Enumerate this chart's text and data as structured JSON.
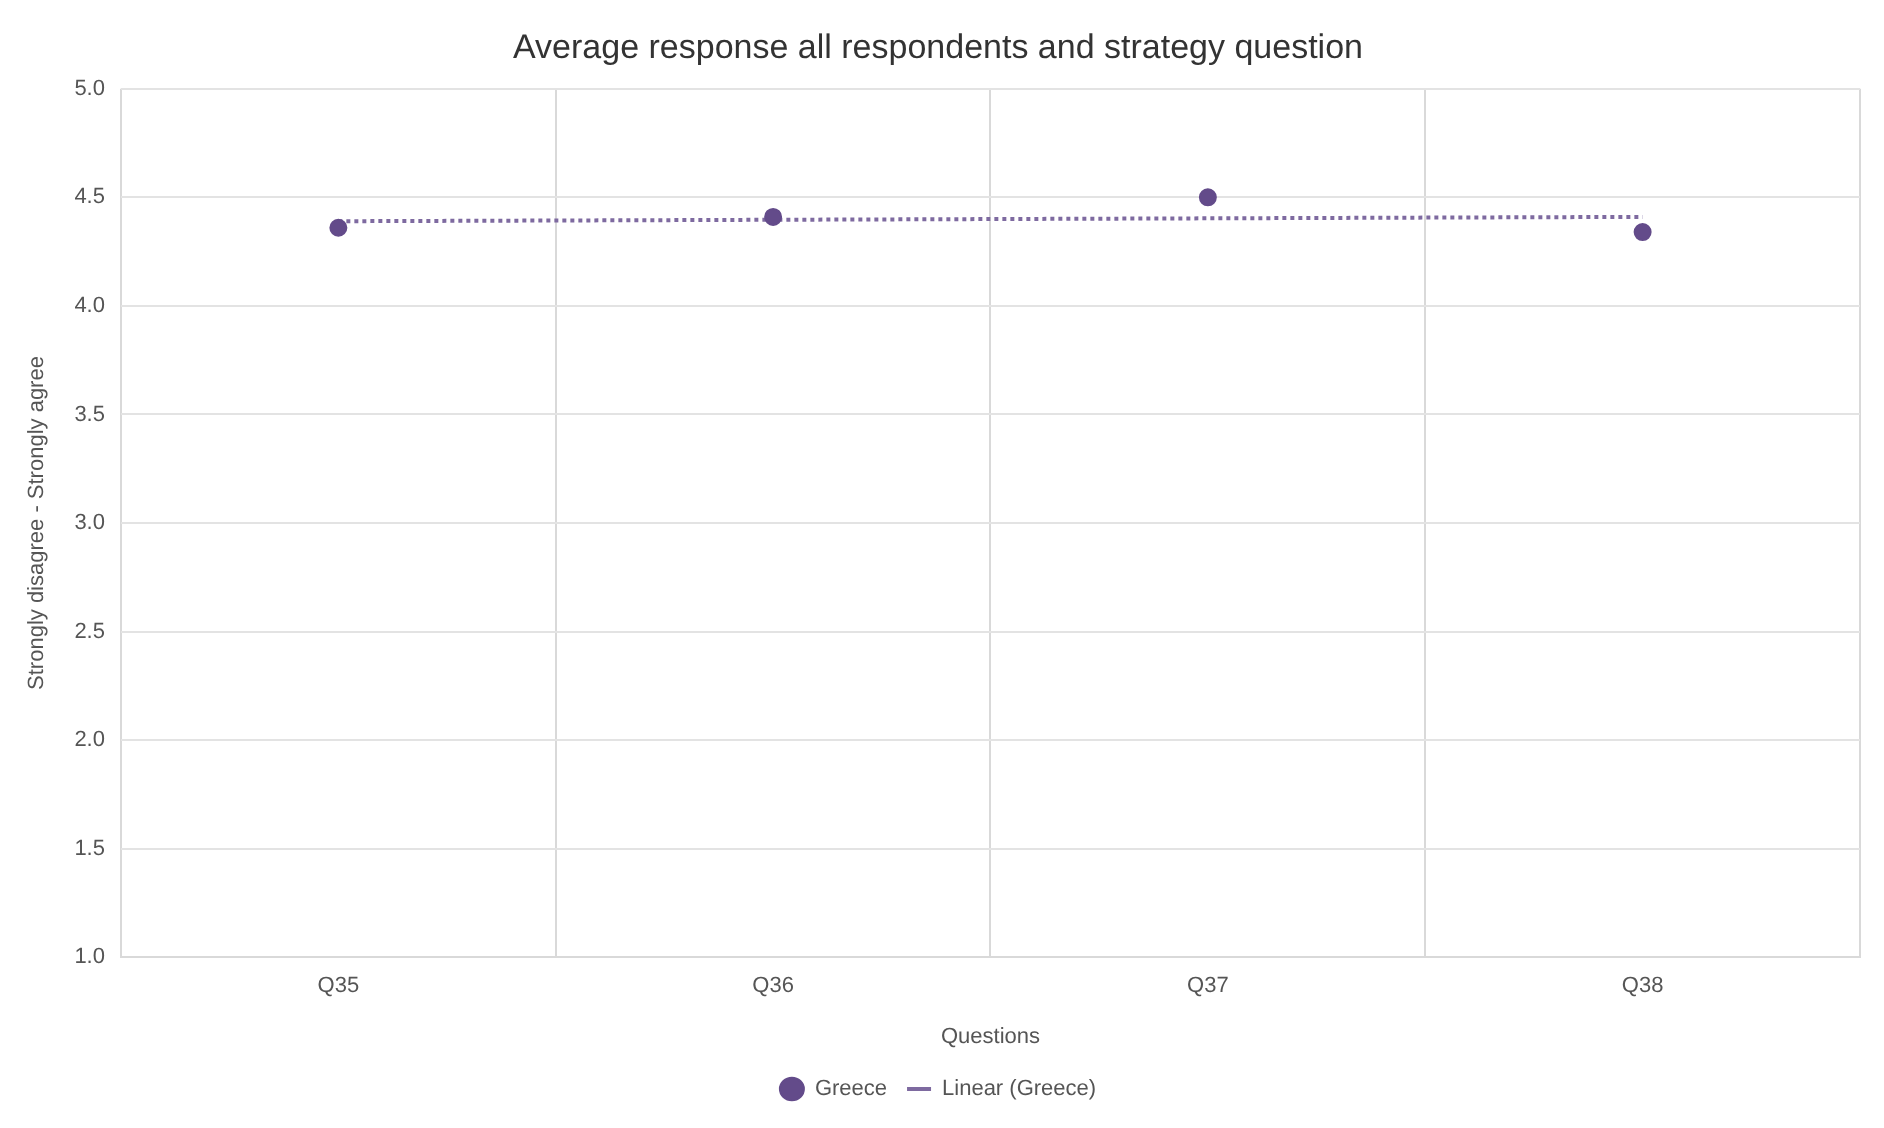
{
  "chart_data": {
    "type": "scatter",
    "title": "Average response all respondents and strategy question",
    "xlabel": "Questions",
    "ylabel": "Strongly disagree - Strongly agree",
    "categories": [
      "Q35",
      "Q36",
      "Q37",
      "Q38"
    ],
    "series": [
      {
        "name": "Greece",
        "type": "scatter",
        "color": "#634b8a",
        "values": [
          4.36,
          4.41,
          4.5,
          4.34
        ],
        "marker": "circle"
      },
      {
        "name": "Linear (Greece)",
        "type": "line",
        "color": "#7e6aa0",
        "x": [
          "Q35",
          "Q38"
        ],
        "values": [
          4.39,
          4.41
        ],
        "marker": "none",
        "line_style": "dotted"
      }
    ],
    "ylim": [
      1.0,
      5.0
    ],
    "yticks": [
      {
        "value": 1,
        "label": "1.0"
      },
      {
        "value": 1.5,
        "label": "1.5"
      },
      {
        "value": 2,
        "label": "2.0"
      },
      {
        "value": 2.5,
        "label": "2.5"
      },
      {
        "value": 3,
        "label": "3.0"
      },
      {
        "value": 3.5,
        "label": "3.5"
      },
      {
        "value": 4,
        "label": "4.0"
      },
      {
        "value": 4.5,
        "label": "4.5"
      },
      {
        "value": 5,
        "label": "5.0"
      }
    ],
    "grid": true,
    "legend": "bottom"
  }
}
